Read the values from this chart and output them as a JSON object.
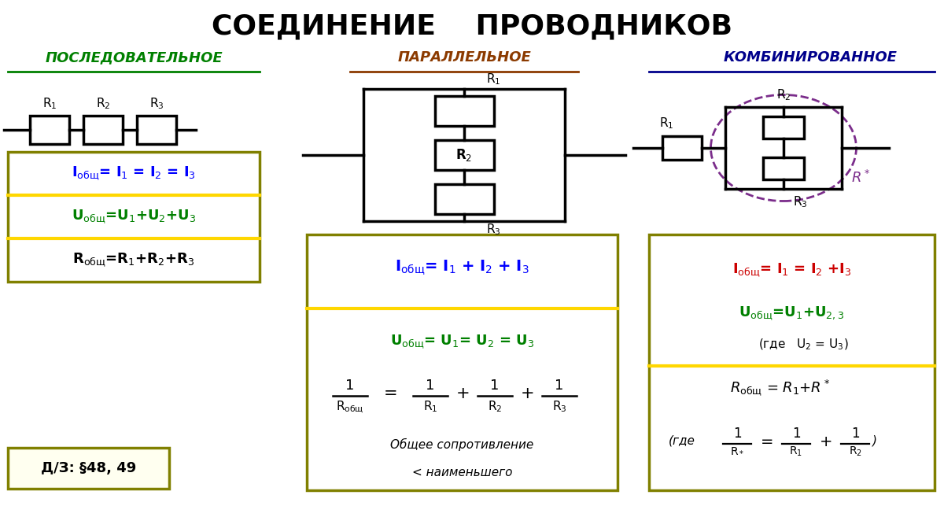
{
  "title": "СОЕДИНЕНИЕ    ПРОВОДНИКОВ",
  "title_color": "#000000",
  "title_fontsize": 26,
  "bg_color": "#ffffff",
  "section1_header": "ПОСЛЕДОВАТЕЛЬНОЕ",
  "section2_header": "ПАРАЛЛЕЛЬНОЕ",
  "section3_header": "КОМБИНИРОВАННОЕ",
  "header1_color": "#008000",
  "header2_color": "#8B3A00",
  "header3_color": "#00008B",
  "box_border_color": "#808000",
  "box_bg_color": "#ffffff",
  "yellow_line_color": "#FFD700",
  "blue_text": "#0000FF",
  "green_text": "#008000",
  "red_text": "#CC0000",
  "black_text": "#000000",
  "purple_color": "#7B2D8B",
  "italic_text_color": "#000000",
  "hw_box_border": "#808000",
  "hw_box_bg": "#FFFFF0"
}
